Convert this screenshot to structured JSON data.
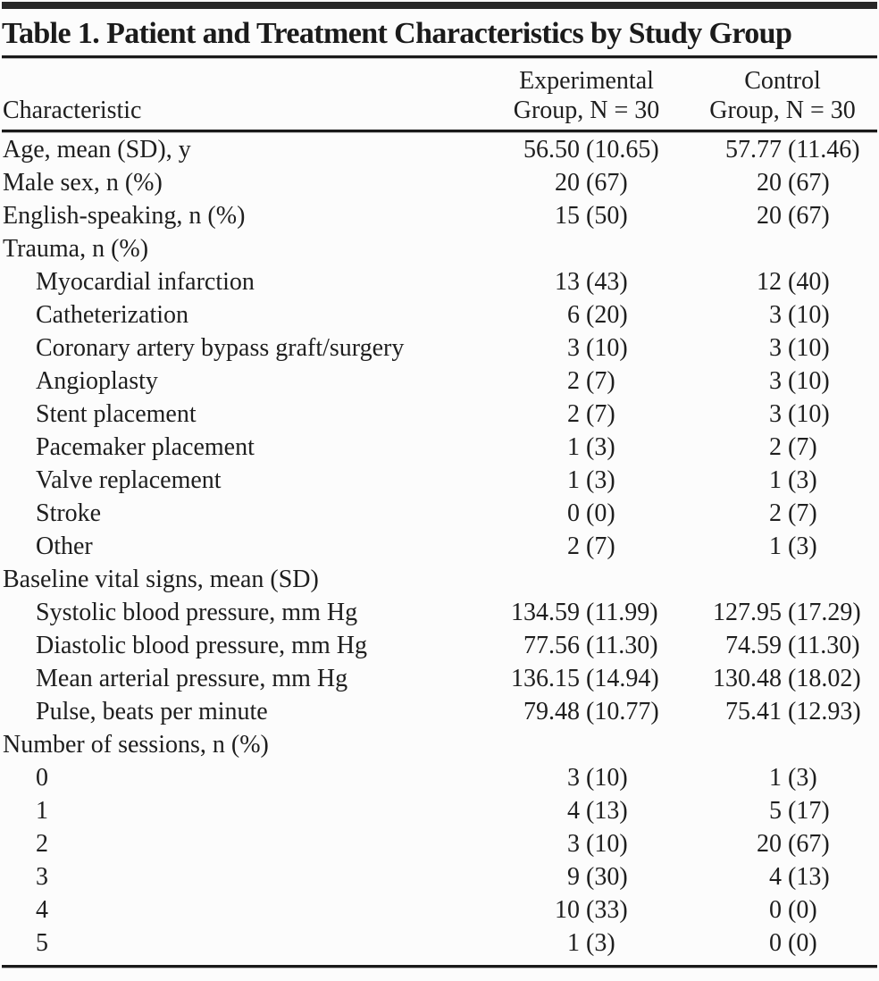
{
  "page": {
    "background_color": "#fcfcfc",
    "text_color": "#1e1e1e",
    "rule_color": "#1a1a1a",
    "rule_shadow_color": "#b9b9b9",
    "top_bar_color": "#282828"
  },
  "table": {
    "title": "Table 1. Patient and Treatment Characteristics by Study Group",
    "columns": {
      "characteristic": "Characteristic",
      "experimental": {
        "line1": "Experimental",
        "line2": "Group, N = 30"
      },
      "control": {
        "line1": "Control",
        "line2": "Group, N = 30"
      }
    },
    "rows": [
      {
        "label": "Age, mean (SD), y",
        "indent": 0,
        "experimental": "56.50 (10.65)",
        "control": "57.77 (11.46)"
      },
      {
        "label": "Male sex, n (%)",
        "indent": 0,
        "experimental": "20 (67)",
        "control": "20 (67)"
      },
      {
        "label": "English-speaking, n (%)",
        "indent": 0,
        "experimental": "15 (50)",
        "control": "20 (67)"
      },
      {
        "label": "Trauma, n (%)",
        "indent": 0,
        "experimental": "",
        "control": ""
      },
      {
        "label": "Myocardial infarction",
        "indent": 1,
        "experimental": "13 (43)",
        "control": "12 (40)"
      },
      {
        "label": "Catheterization",
        "indent": 1,
        "experimental": "6 (20)",
        "control": "3 (10)"
      },
      {
        "label": "Coronary artery bypass graft/surgery",
        "indent": 1,
        "experimental": "3 (10)",
        "control": "3 (10)"
      },
      {
        "label": "Angioplasty",
        "indent": 1,
        "experimental": "2 (7)",
        "control": "3 (10)"
      },
      {
        "label": "Stent placement",
        "indent": 1,
        "experimental": "2 (7)",
        "control": "3 (10)"
      },
      {
        "label": "Pacemaker placement",
        "indent": 1,
        "experimental": "1 (3)",
        "control": "2 (7)"
      },
      {
        "label": "Valve replacement",
        "indent": 1,
        "experimental": "1 (3)",
        "control": "1 (3)"
      },
      {
        "label": "Stroke",
        "indent": 1,
        "experimental": "0 (0)",
        "control": "2 (7)"
      },
      {
        "label": "Other",
        "indent": 1,
        "experimental": "2 (7)",
        "control": "1 (3)"
      },
      {
        "label": "Baseline vital signs, mean (SD)",
        "indent": 0,
        "experimental": "",
        "control": ""
      },
      {
        "label": "Systolic blood pressure, mm Hg",
        "indent": 1,
        "experimental": "134.59 (11.99)",
        "control": "127.95 (17.29)"
      },
      {
        "label": "Diastolic blood pressure, mm Hg",
        "indent": 1,
        "experimental": "77.56 (11.30)",
        "control": "74.59 (11.30)"
      },
      {
        "label": "Mean arterial pressure, mm Hg",
        "indent": 1,
        "experimental": "136.15 (14.94)",
        "control": "130.48 (18.02)"
      },
      {
        "label": "Pulse, beats per minute",
        "indent": 1,
        "experimental": "79.48 (10.77)",
        "control": "75.41 (12.93)"
      },
      {
        "label": "Number of sessions, n (%)",
        "indent": 0,
        "experimental": "",
        "control": ""
      },
      {
        "label": "0",
        "indent": 1,
        "experimental": "3 (10)",
        "control": "1 (3)"
      },
      {
        "label": "1",
        "indent": 1,
        "experimental": "4 (13)",
        "control": "5 (17)"
      },
      {
        "label": "2",
        "indent": 1,
        "experimental": "3 (10)",
        "control": "20 (67)"
      },
      {
        "label": "3",
        "indent": 1,
        "experimental": "9 (30)",
        "control": "4 (13)"
      },
      {
        "label": "4",
        "indent": 1,
        "experimental": "10 (33)",
        "control": "0 (0)"
      },
      {
        "label": "5",
        "indent": 1,
        "experimental": "1 (3)",
        "control": "0 (0)"
      }
    ]
  }
}
